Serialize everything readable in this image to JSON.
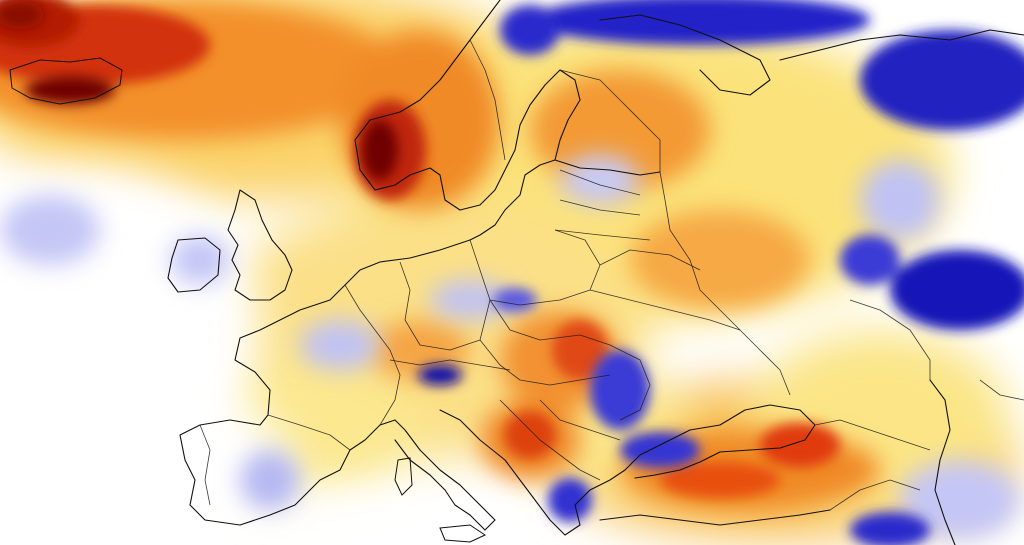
{
  "map": {
    "type": "temperature-anomaly",
    "region": "Europe",
    "legend": "none",
    "palette": {
      "strong_warm": "#6e0000",
      "warm_red": "#e03a0a",
      "warm_orange": "#f5a23a",
      "warm_yellow": "#fbe27a",
      "neutral": "#ffffff",
      "cool_light": "#b8bcf4",
      "cool_blue": "#3a3ad6",
      "strong_cool": "#0a0aa8"
    },
    "layers": [
      "anomaly-field",
      "coastlines",
      "country-borders"
    ],
    "labels": []
  }
}
